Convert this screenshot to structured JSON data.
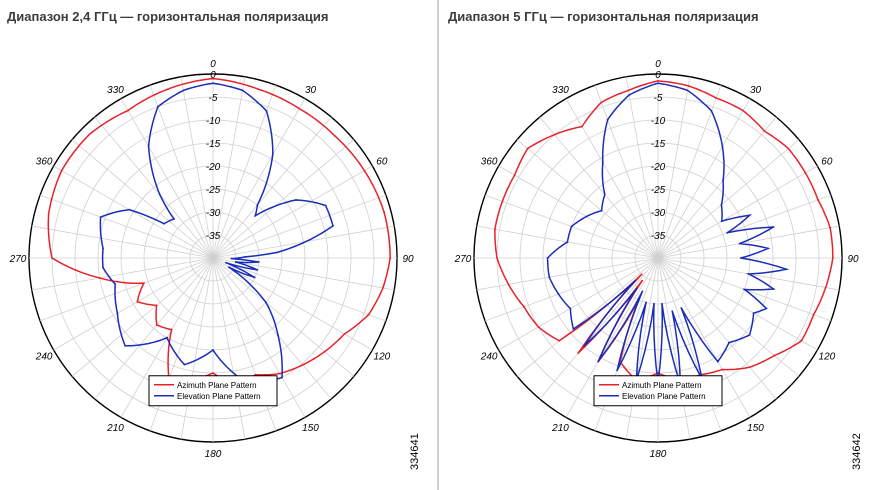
{
  "chart_data": [
    {
      "type": "polar-line",
      "title": "Диапазон 2,4 ГГц — горизонтальная поляризация",
      "figure_id": "334641",
      "radial_axis": {
        "min": -40,
        "max": 0,
        "tick_labels": [
          "0",
          "-5",
          "-10",
          "-15",
          "-20",
          "-25",
          "-30",
          "-35"
        ]
      },
      "angle_labels": [
        "0",
        "30",
        "60",
        "90",
        "120",
        "150",
        "180",
        "210",
        "240",
        "270",
        "360",
        "330"
      ],
      "grid": true,
      "legend_position": "bottom-center",
      "series": [
        {
          "name": "Azimuth Plane Pattern",
          "color": "#e8222a",
          "angles": [
            0,
            15,
            30,
            45,
            60,
            75,
            90,
            100,
            110,
            120,
            135,
            150,
            160,
            170,
            180,
            190,
            200,
            210,
            220,
            230,
            240,
            250,
            260,
            270,
            285,
            300,
            315,
            330,
            345
          ],
          "values": [
            -1,
            -2,
            -2.5,
            -2.5,
            -2,
            -1.5,
            -1.5,
            -2.5,
            -4,
            -7,
            -9,
            -11,
            -13,
            -12,
            -15,
            -13,
            -12,
            -22,
            -21,
            -24,
            -21,
            -24,
            -15,
            -5,
            -3,
            -2,
            -2,
            -3,
            -2
          ]
        },
        {
          "name": "Elevation Plane Pattern",
          "color": "#1a2db8",
          "angles": [
            0,
            10,
            20,
            30,
            40,
            45,
            55,
            65,
            75,
            85,
            88,
            92,
            95,
            100,
            105,
            110,
            115,
            120,
            130,
            140,
            150,
            165,
            180,
            195,
            210,
            225,
            240,
            255,
            265,
            275,
            290,
            300,
            305,
            315,
            320,
            330,
            340,
            350
          ],
          "values": [
            -2,
            -3,
            -6,
            -14,
            -25,
            -27,
            -18,
            -13,
            -13,
            -26,
            -33,
            -36,
            -30,
            -35,
            -30,
            -37,
            -30,
            -36,
            -25,
            -18,
            -10,
            -12,
            -20,
            -16,
            -20,
            -13,
            -16,
            -18,
            -16,
            -16,
            -14,
            -19,
            -27,
            -28,
            -22,
            -12,
            -5,
            -3
          ]
        }
      ]
    },
    {
      "type": "polar-line",
      "title": "Диапазон 5 ГГц — горизонтальная поляризация",
      "figure_id": "334642",
      "radial_axis": {
        "min": -40,
        "max": 0,
        "tick_labels": [
          "0",
          "-5",
          "-10",
          "-15",
          "-20",
          "-25",
          "-30",
          "-35"
        ]
      },
      "angle_labels": [
        "0",
        "30",
        "60",
        "90",
        "120",
        "150",
        "180",
        "210",
        "240",
        "270",
        "360",
        "330"
      ],
      "grid": true,
      "legend_position": "bottom-center",
      "series": [
        {
          "name": "Azimuth Plane Pattern",
          "color": "#e8222a",
          "angles": [
            0,
            10,
            20,
            30,
            40,
            50,
            60,
            70,
            80,
            90,
            100,
            110,
            120,
            130,
            140,
            150,
            160,
            170,
            180,
            190,
            200,
            205,
            210,
            215,
            220,
            225,
            230,
            240,
            250,
            260,
            270,
            280,
            290,
            300,
            310,
            320,
            330,
            340,
            350
          ],
          "values": [
            -1.5,
            -2,
            -3,
            -3,
            -4,
            -3,
            -3,
            -3,
            -2,
            -2,
            -3,
            -4,
            -4,
            -7,
            -9,
            -12,
            -13,
            -13,
            -15,
            -13,
            -16,
            -30,
            -14,
            -34,
            -13,
            -35,
            -12,
            -10,
            -9,
            -7,
            -5,
            -4,
            -4,
            -4,
            -3,
            -5,
            -7,
            -4,
            -3
          ]
        },
        {
          "name": "Elevation Plane Pattern",
          "color": "#1a2db8",
          "angles": [
            0,
            10,
            20,
            30,
            40,
            50,
            60,
            65,
            70,
            75,
            80,
            85,
            90,
            95,
            100,
            105,
            110,
            115,
            120,
            130,
            140,
            150,
            155,
            160,
            165,
            170,
            175,
            180,
            185,
            190,
            195,
            200,
            205,
            210,
            215,
            220,
            225,
            230,
            240,
            250,
            260,
            270,
            280,
            290,
            300,
            310,
            320,
            330,
            340,
            350
          ],
          "values": [
            -2,
            -3,
            -6,
            -12,
            -18,
            -22,
            -24,
            -18,
            -24,
            -14,
            -22,
            -16,
            -22,
            -12,
            -20,
            -14,
            -20,
            -14,
            -16,
            -14,
            -16,
            -14,
            -28,
            -12,
            -28,
            -12,
            -30,
            -13,
            -30,
            -13,
            -30,
            -14,
            -32,
            -14,
            -32,
            -15,
            -33,
            -16,
            -18,
            -17,
            -16,
            -16,
            -20,
            -20,
            -22,
            -24,
            -22,
            -16,
            -8,
            -4
          ]
        }
      ]
    }
  ]
}
